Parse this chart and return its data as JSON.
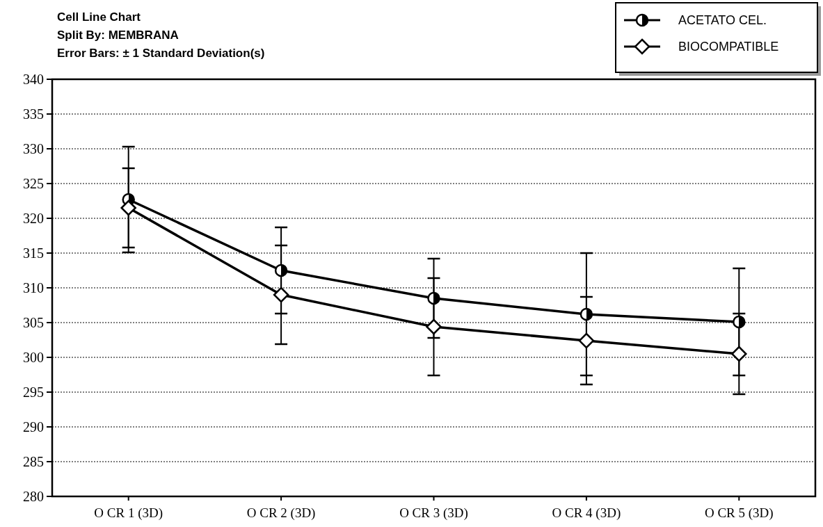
{
  "chart_data": {
    "type": "line",
    "title": "Cell Line Chart",
    "subtitle": "Split By: MEMBRANA\nError Bars: ± 1 Standard Deviation(s)",
    "categories": [
      "O CR 1 (3D)",
      "O CR 2 (3D)",
      "O CR 3 (3D)",
      "O CR 4 (3D)",
      "O CR 5 (3D)"
    ],
    "series": [
      {
        "name": "ACETATO CEL.",
        "color": "#000000",
        "marker": "circle",
        "values": [
          322.7,
          312.5,
          308.5,
          306.2,
          305.1
        ],
        "errors": [
          7.6,
          6.2,
          5.7,
          8.8,
          7.7
        ]
      },
      {
        "name": "BIOCOMPATIBLE",
        "color": "#000000",
        "marker": "diamond",
        "values": [
          321.5,
          309.0,
          304.4,
          302.4,
          300.5
        ],
        "errors": [
          5.7,
          7.1,
          7.0,
          6.3,
          5.8
        ]
      }
    ],
    "ylim": [
      280,
      340
    ],
    "yticks": [
      280,
      285,
      290,
      295,
      300,
      305,
      310,
      315,
      320,
      325,
      330,
      335,
      340
    ],
    "grid": "y",
    "legend": "top right",
    "line_style": "solid"
  }
}
